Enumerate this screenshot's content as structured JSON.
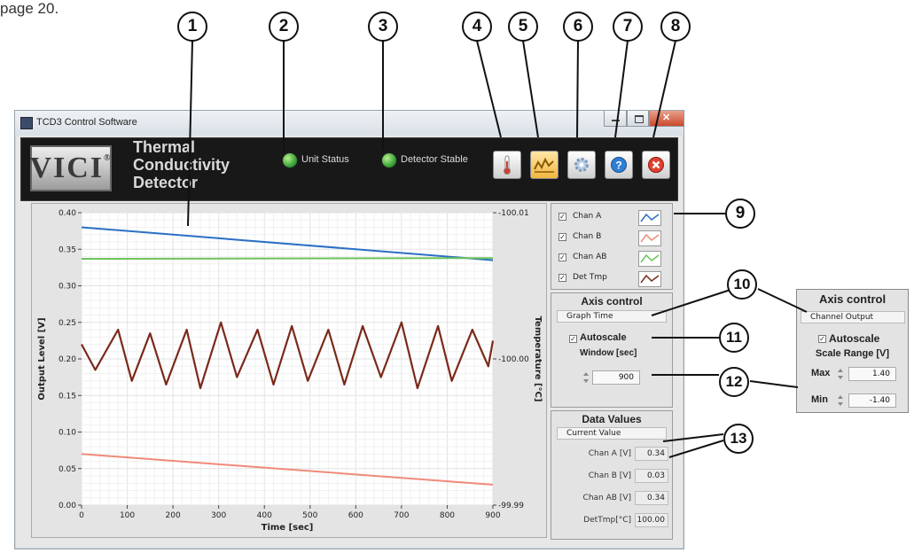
{
  "caption": {
    "text": "page 20."
  },
  "window": {
    "title": "TCD3 Control Software"
  },
  "header": {
    "logo": "VICI",
    "logo_mark": "®",
    "heading_line1": "Thermal",
    "heading_line2": "Conductivity",
    "heading_line3": "Detector",
    "unit_status": "Unit Status",
    "detector_stable": "Detector Stable"
  },
  "toolbar": {
    "buttons": [
      {
        "icon": "thermometer-icon"
      },
      {
        "icon": "graph-icon"
      },
      {
        "icon": "gear-icon"
      },
      {
        "icon": "help-icon"
      },
      {
        "icon": "close-icon"
      }
    ]
  },
  "chart_data": {
    "type": "line",
    "xlabel": "Time [sec]",
    "ylabel": "Output Level [V]",
    "y2label": "Temperature [°C]",
    "xlim": [
      0,
      900
    ],
    "ylim": [
      0.0,
      0.4
    ],
    "y2lim": [
      -99.99,
      -100.01
    ],
    "x_ticks": [
      "0",
      "100",
      "200",
      "300",
      "400",
      "500",
      "600",
      "700",
      "800",
      "900"
    ],
    "y_ticks": [
      "0.00",
      "0.05",
      "0.10",
      "0.15",
      "0.20",
      "0.25",
      "0.30",
      "0.35",
      "0.40"
    ],
    "y2_ticks": [
      "-100.01",
      "-100.00",
      "-99.99"
    ],
    "grid": true,
    "series": [
      {
        "name": "Chan A",
        "color": "#2a6fc4",
        "x": [
          0,
          900
        ],
        "y": [
          0.38,
          0.335
        ]
      },
      {
        "name": "Chan B",
        "color": "#f08a7a",
        "x": [
          0,
          900
        ],
        "y": [
          0.07,
          0.028
        ]
      },
      {
        "name": "Chan AB",
        "color": "#6cc25a",
        "x": [
          0,
          900
        ],
        "y": [
          0.337,
          0.338
        ]
      },
      {
        "name": "Det Tmp",
        "color": "#7a2a1a",
        "x": [
          0,
          30,
          80,
          110,
          150,
          185,
          230,
          260,
          305,
          340,
          385,
          420,
          460,
          495,
          540,
          575,
          615,
          655,
          700,
          735,
          780,
          810,
          855,
          890,
          900
        ],
        "y": [
          0.22,
          0.185,
          0.24,
          0.17,
          0.235,
          0.165,
          0.24,
          0.16,
          0.25,
          0.175,
          0.24,
          0.165,
          0.245,
          0.17,
          0.24,
          0.165,
          0.245,
          0.175,
          0.25,
          0.16,
          0.245,
          0.17,
          0.24,
          0.19,
          0.225
        ]
      }
    ]
  },
  "legend": {
    "items": [
      {
        "label": "Chan A",
        "color": "#2a6fc4"
      },
      {
        "label": "Chan B",
        "color": "#f08a7a"
      },
      {
        "label": "Chan AB",
        "color": "#6cc25a"
      },
      {
        "label": "Det Tmp",
        "color": "#7a2a1a"
      }
    ]
  },
  "axis_control": {
    "title": "Axis control",
    "selector": "Graph Time",
    "autoscale": "Autoscale",
    "window_label": "Window [sec]",
    "window_value": "900"
  },
  "data_values": {
    "title": "Data Values",
    "selector": "Current Value",
    "rows": [
      {
        "label": "Chan A [V]",
        "value": "0.34"
      },
      {
        "label": "Chan B [V]",
        "value": "0.03"
      },
      {
        "label": "Chan AB [V]",
        "value": "0.34"
      },
      {
        "label": "DetTmp[°C]",
        "value": "100.00"
      }
    ]
  },
  "ext_axis_control": {
    "title": "Axis control",
    "selector": "Channel Output",
    "autoscale": "Autoscale",
    "range_label": "Scale Range [V]",
    "max_label": "Max",
    "max_value": "1.40",
    "min_label": "Min",
    "min_value": "-1.40"
  },
  "callouts": [
    "1",
    "2",
    "3",
    "4",
    "5",
    "6",
    "7",
    "8",
    "9",
    "10",
    "11",
    "12",
    "13"
  ]
}
